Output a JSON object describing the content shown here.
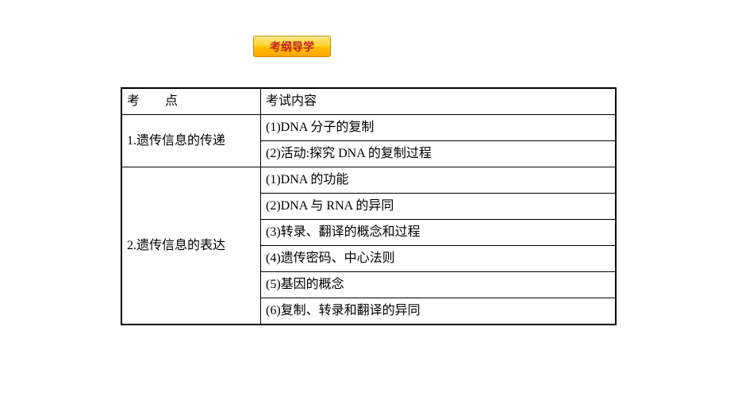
{
  "badge": {
    "label": "考纲导学"
  },
  "table": {
    "header": {
      "col1_part1": "考",
      "col1_part2": "点",
      "col2": "考试内容"
    },
    "rows": [
      {
        "topic": "1.遗传信息的传递",
        "rowspan": 2,
        "items": [
          "(1)DNA 分子的复制",
          "(2)活动:探究 DNA 的复制过程"
        ]
      },
      {
        "topic": "2.遗传信息的表达",
        "rowspan": 6,
        "items": [
          "(1)DNA 的功能",
          "(2)DNA 与 RNA 的异同",
          "(3)转录、翻译的概念和过程",
          "(4)遗传密码、中心法则",
          "(5)基因的概念",
          "(6)复制、转录和翻译的异同"
        ]
      }
    ]
  },
  "colors": {
    "border": "#000000",
    "text": "#000000",
    "badge_text": "#c02020",
    "badge_bg_top": "#ffe680",
    "badge_bg_bottom": "#ffa500",
    "background": "#ffffff"
  }
}
